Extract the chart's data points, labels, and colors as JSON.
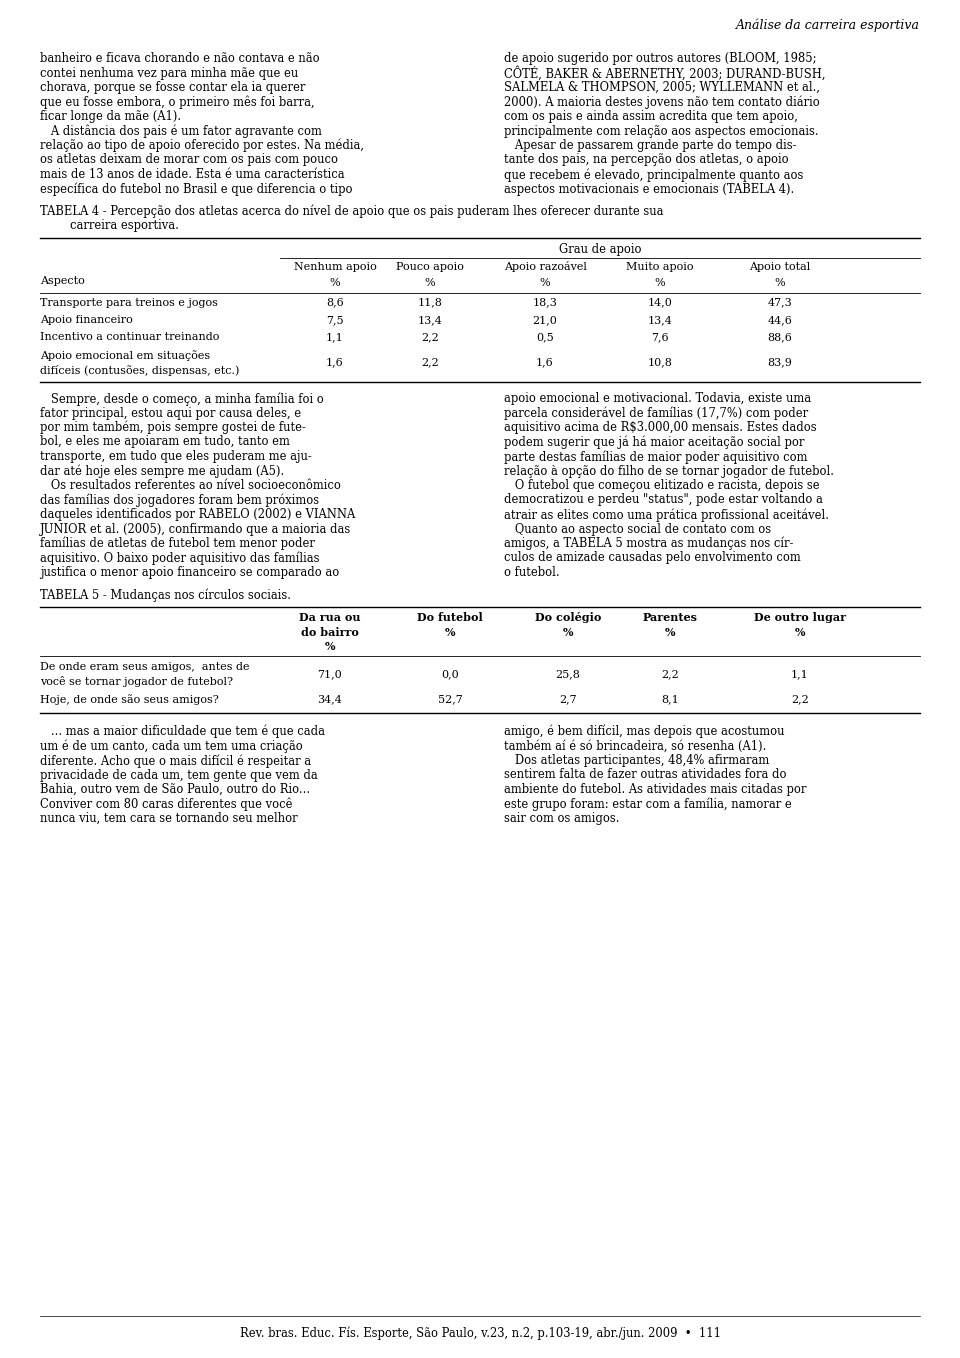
{
  "page_width": 9.6,
  "page_height": 13.58,
  "dpi": 100,
  "bg_color": "#ffffff",
  "text_color": "#000000",
  "header_text": "Análise da carreira esportiva",
  "footer_text": "Rev. bras. Educ. Fís. Esporte, São Paulo, v.23, n.2, p.103-19, abr./jun. 2009  •  111",
  "col1_left_text": [
    "banheiro e ficava chorando e não contava e não",
    "contei nenhuma vez para minha mãe que eu",
    "chorava, porque se fosse contar ela ia querer",
    "que eu fosse embora, o primeiro mês foi barra,",
    "ficar longe da mãe (A1).",
    "   A distância dos pais é um fator agravante com",
    "relação ao tipo de apoio oferecido por estes. Na média,",
    "os atletas deixam de morar com os pais com pouco",
    "mais de 13 anos de idade. Esta é uma característica",
    "específica do futebol no Brasil e que diferencia o tipo"
  ],
  "col1_right_text": [
    "de apoio sugerido por outros autores (BLOOM, 1985;",
    "CÔTÉ, BAKER & ABERNETHY, 2003; DURAND-BUSH,",
    "SALMELA & THOMPSON, 2005; WYLLEMANN et al.,",
    "2000). A maioria destes jovens não tem contato diário",
    "com os pais e ainda assim acredita que tem apoio,",
    "principalmente com relação aos aspectos emocionais.",
    "   Apesar de passarem grande parte do tempo dis-",
    "tante dos pais, na percepção dos atletas, o apoio",
    "que recebem é elevado, principalmente quanto aos",
    "aspectos motivacionais e emocionais (TABELA 4)."
  ],
  "table4_title_line1": "TABELA 4 - Percepção dos atletas acerca do nível de apoio que os pais puderam lhes oferecer durante sua",
  "table4_title_line2": "          carreira esportiva.",
  "table4_header_main": "Grau de apoio",
  "table4_aspecto_header": "Aspecto",
  "table4_col_names": [
    "Nenhum apoio",
    "Pouco apoio",
    "Apoio razoável",
    "Muito apoio",
    "Apoio total"
  ],
  "table4_rows": [
    [
      "Transporte para treinos e jogos",
      "8,6",
      "11,8",
      "18,3",
      "14,0",
      "47,3"
    ],
    [
      "Apoio financeiro",
      "7,5",
      "13,4",
      "21,0",
      "13,4",
      "44,6"
    ],
    [
      "Incentivo a continuar treinando",
      "1,1",
      "2,2",
      "0,5",
      "7,6",
      "88,6"
    ],
    [
      "Apoio emocional em situações\ndifíceis (contusões, dispensas, etc.)",
      "1,6",
      "2,2",
      "1,6",
      "10,8",
      "83,9"
    ]
  ],
  "col2_left_text": [
    "   Sempre, desde o começo, a minha família foi o",
    "fator principal, estou aqui por causa deles, e",
    "por mim também, pois sempre gostei de fute-",
    "bol, e eles me apoiaram em tudo, tanto em",
    "transporte, em tudo que eles puderam me aju-",
    "dar até hoje eles sempre me ajudam (A5).",
    "   Os resultados referentes ao nível socioeconômico",
    "das famílias dos jogadores foram bem próximos",
    "daqueles identificados por RABELO (2002) e VIANNA",
    "JUNIOR et al. (2005), confirmando que a maioria das",
    "famílias de atletas de futebol tem menor poder",
    "aquisitivo. O baixo poder aquisitivo das famílias",
    "justifica o menor apoio financeiro se comparado ao"
  ],
  "col2_right_text": [
    "apoio emocional e motivacional. Todavia, existe uma",
    "parcela considerável de famílias (17,7%) com poder",
    "aquisitivo acima de R$3.000,00 mensais. Estes dados",
    "podem sugerir que já há maior aceitação social por",
    "parte destas famílias de maior poder aquisitivo com",
    "relação à opção do filho de se tornar jogador de futebol.",
    "   O futebol que começou elitizado e racista, depois se",
    "democratizou e perdeu \"status\", pode estar voltando a",
    "atrair as elites como uma prática profissional aceitável.",
    "   Quanto ao aspecto social de contato com os",
    "amigos, a TABELA 5 mostra as mudanças nos cír-",
    "culos de amizade causadas pelo envolvimento com",
    "o futebol."
  ],
  "table5_title": "TABELA 5 - Mudanças nos círculos sociais.",
  "table5_col_names": [
    "Da rua ou\ndo bairro\n%",
    "Do futebol\n%",
    "Do colégio\n%",
    "Parentes\n%",
    "De outro lugar\n%"
  ],
  "table5_rows": [
    [
      "De onde eram seus amigos,  antes de\nvocê se tornar jogador de futebol?",
      "71,0",
      "0,0",
      "25,8",
      "2,2",
      "1,1"
    ],
    [
      "Hoje, de onde são seus amigos?",
      "34,4",
      "52,7",
      "2,7",
      "8,1",
      "2,2"
    ]
  ],
  "col3_left_text": [
    "   ... mas a maior dificuldade que tem é que cada",
    "um é de um canto, cada um tem uma criação",
    "diferente. Acho que o mais difícil é respeitar a",
    "privacidade de cada um, tem gente que vem da",
    "Bahia, outro vem de São Paulo, outro do Rio...",
    "Conviver com 80 caras diferentes que você",
    "nunca viu, tem cara se tornando seu melhor"
  ],
  "col3_right_text": [
    "amigo, é bem difícil, mas depois que acostumou",
    "também aí é só brincadeira, só resenha (A1).",
    "   Dos atletas participantes, 48,4% afirmaram",
    "sentirem falta de fazer outras atividades fora do",
    "ambiente do futebol. As atividades mais citadas por",
    "este grupo foram: estar com a família, namorar e",
    "sair com os amigos."
  ]
}
